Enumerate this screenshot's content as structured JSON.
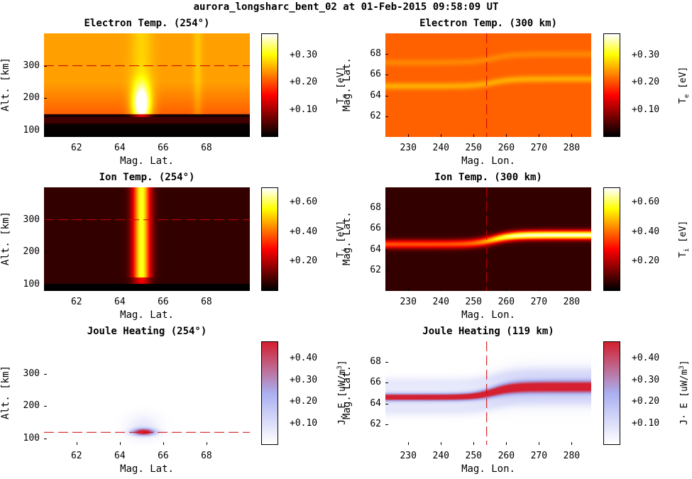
{
  "figure_title": "aurora_longsharc_bent_02 at 01-Feb-2015 09:58:09 UT",
  "colors": {
    "hot_dark": "#000000",
    "hot_mid": "#d42010",
    "hot_bright": "#ffff40",
    "joule_low": "#ffffff",
    "joule_mid": "#aab0f0",
    "joule_high": "#d42030",
    "marker_line": "#cc0000"
  },
  "chart_data": [
    {
      "type": "heatmap",
      "title": "Electron Temp. (254°)",
      "xlabel": "Mag. Lat.",
      "ylabel": "Alt. [km]",
      "xticks": [
        "62",
        "64",
        "66",
        "68"
      ],
      "yticks": [
        "100",
        "200",
        "300"
      ],
      "xlim": [
        60.5,
        70
      ],
      "ylim": [
        80,
        400
      ],
      "colorbar": {
        "label_main": "T",
        "label_sub": "e",
        "label_unit": " [eV]",
        "ticks": [
          "+0.10",
          "+0.20",
          "+0.30"
        ],
        "range": [
          0,
          0.38
        ],
        "colormap": "hot"
      },
      "features": {
        "arc_lat": 65.0,
        "secondary_arc_lat": 67.6,
        "cut_altitude_km": 300,
        "peak_value": 0.36
      }
    },
    {
      "type": "heatmap",
      "title": "Electron Temp. (300 km)",
      "xlabel": "Mag. Lon.",
      "ylabel": "Mag. Lat.",
      "xticks": [
        "230",
        "240",
        "250",
        "260",
        "270",
        "280"
      ],
      "yticks": [
        "62",
        "64",
        "66",
        "68"
      ],
      "xlim": [
        223,
        286
      ],
      "ylim": [
        60,
        70
      ],
      "colorbar": {
        "label_main": "T",
        "label_sub": "e",
        "label_unit": " [eV]",
        "ticks": [
          "+0.10",
          "+0.20",
          "+0.30"
        ],
        "range": [
          0,
          0.38
        ],
        "colormap": "hot"
      },
      "features": {
        "arc_lat_west": 64.9,
        "arc_lat_east": 65.6,
        "cut_longitude_deg": 254
      }
    },
    {
      "type": "heatmap",
      "title": "Ion Temp. (254°)",
      "xlabel": "Mag. Lat.",
      "ylabel": "Alt. [km]",
      "xticks": [
        "62",
        "64",
        "66",
        "68"
      ],
      "yticks": [
        "100",
        "200",
        "300"
      ],
      "xlim": [
        60.5,
        70
      ],
      "ylim": [
        80,
        400
      ],
      "colorbar": {
        "label_main": "T",
        "label_sub": "i",
        "label_unit": " [eV]",
        "ticks": [
          "+0.20",
          "+0.40",
          "+0.60"
        ],
        "range": [
          0,
          0.7
        ],
        "colormap": "hot"
      },
      "features": {
        "arc_lat": 65.0,
        "cut_altitude_km": 300,
        "peak_value": 0.65
      }
    },
    {
      "type": "heatmap",
      "title": "Ion Temp. (300 km)",
      "xlabel": "Mag. Lon.",
      "ylabel": "Mag. Lat.",
      "xticks": [
        "230",
        "240",
        "250",
        "260",
        "270",
        "280"
      ],
      "yticks": [
        "62",
        "64",
        "66",
        "68"
      ],
      "xlim": [
        223,
        286
      ],
      "ylim": [
        60,
        70
      ],
      "colorbar": {
        "label_main": "T",
        "label_sub": "i",
        "label_unit": " [eV]",
        "ticks": [
          "+0.20",
          "+0.40",
          "+0.60"
        ],
        "range": [
          0,
          0.7
        ],
        "colormap": "hot"
      },
      "features": {
        "arc_lat_west": 64.5,
        "arc_lat_east": 65.4,
        "cut_longitude_deg": 254
      }
    },
    {
      "type": "heatmap",
      "title": "Joule Heating (254°)",
      "xlabel": "Mag. Lat.",
      "ylabel": "Alt. [km]",
      "xticks": [
        "62",
        "64",
        "66",
        "68"
      ],
      "yticks": [
        "100",
        "200",
        "300"
      ],
      "xlim": [
        60.5,
        70
      ],
      "ylim": [
        80,
        400
      ],
      "colorbar": {
        "label_main": "J· E [uW/m",
        "label_sup": "3",
        "label_end": "]",
        "ticks": [
          "+0.10",
          "+0.20",
          "+0.30",
          "+0.40"
        ],
        "range": [
          0,
          0.48
        ],
        "colormap": "white-blue-red"
      },
      "features": {
        "arc_lat": 65.0,
        "cut_altitude_km": 119,
        "peak_altitude_km": 119
      }
    },
    {
      "type": "heatmap",
      "title": "Joule Heating (119 km)",
      "xlabel": "Mag. Lon.",
      "ylabel": "Mag. Lat.",
      "xticks": [
        "230",
        "240",
        "250",
        "260",
        "270",
        "280"
      ],
      "yticks": [
        "62",
        "64",
        "66",
        "68"
      ],
      "xlim": [
        223,
        286
      ],
      "ylim": [
        60,
        70
      ],
      "colorbar": {
        "label_main": "J· E [uW/m",
        "label_sup": "3",
        "label_end": "]",
        "ticks": [
          "+0.10",
          "+0.20",
          "+0.30",
          "+0.40"
        ],
        "range": [
          0,
          0.48
        ],
        "colormap": "white-blue-red"
      },
      "features": {
        "arc_lat_west": 64.6,
        "arc_lat_east": 65.6,
        "cut_longitude_deg": 254
      }
    }
  ]
}
